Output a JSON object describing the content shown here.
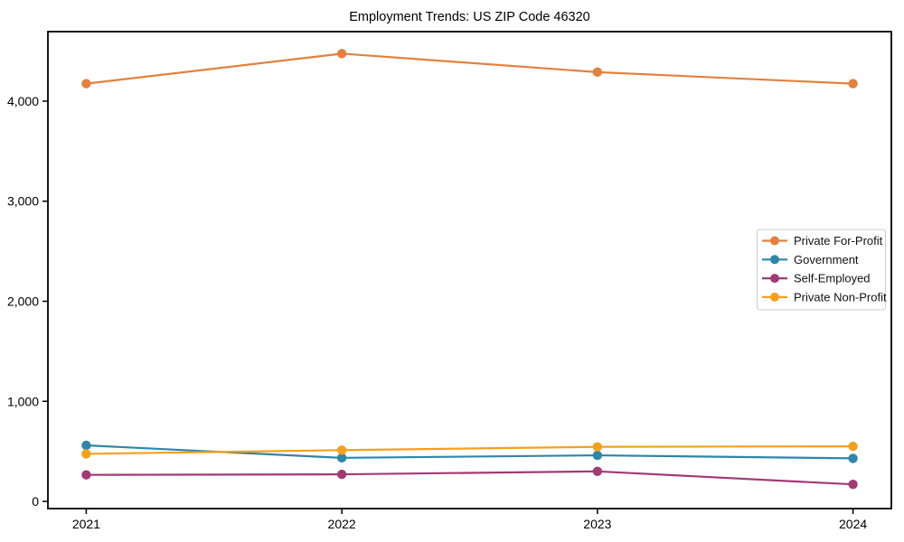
{
  "figure": {
    "background": "#ffffff",
    "axis_color": "#000000"
  },
  "chart_data": {
    "type": "line",
    "title": "Employment Trends: US ZIP Code 46320",
    "xlabel": "",
    "ylabel": "",
    "grid": false,
    "x": [
      "2021",
      "2022",
      "2023",
      "2024"
    ],
    "series": [
      {
        "name": "Private For-Profit",
        "color": "#E3813D",
        "marker": "circle",
        "values": [
          4175,
          4475,
          4290,
          4175
        ]
      },
      {
        "name": "Government",
        "color": "#2E86A8",
        "marker": "circle",
        "values": [
          560,
          435,
          460,
          430
        ]
      },
      {
        "name": "Self-Employed",
        "color": "#A23A74",
        "marker": "circle",
        "values": [
          265,
          270,
          300,
          170
        ]
      },
      {
        "name": "Private Non-Profit",
        "color": "#F4A01E",
        "marker": "circle",
        "values": [
          475,
          512,
          545,
          550
        ]
      }
    ],
    "yticks": {
      "values": [
        0,
        1000,
        2000,
        3000,
        4000
      ],
      "labels": [
        "0",
        "1,000",
        "2,000",
        "3,000",
        "4,000"
      ]
    },
    "ylim": [
      -72,
      4695
    ],
    "xlim_index": [
      -0.15,
      3.15
    ],
    "legend": {
      "position": "center-right",
      "border_color": "#cccccc",
      "background": "#ffffff"
    }
  }
}
